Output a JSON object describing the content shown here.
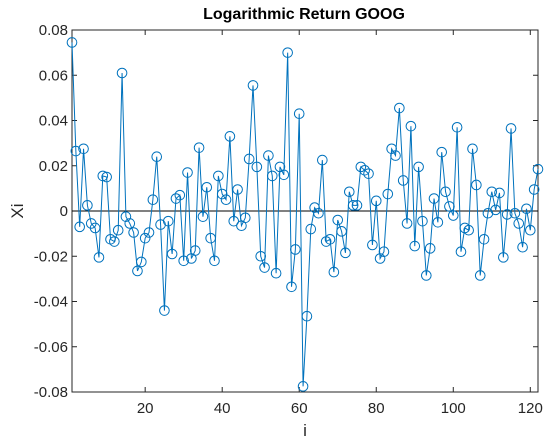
{
  "chart_data": {
    "type": "line",
    "title": "Logarithmic Return GOOG",
    "xlabel": "i",
    "ylabel": "Xi",
    "xlim": [
      1,
      122
    ],
    "ylim": [
      -0.08,
      0.08
    ],
    "xticks": [
      20,
      40,
      60,
      80,
      100,
      120
    ],
    "xtick_labels": [
      "20",
      "40",
      "60",
      "80",
      "100",
      "120"
    ],
    "yticks": [
      0.08,
      0.06,
      0.04,
      0.02,
      0,
      -0.02,
      -0.04,
      -0.06,
      -0.08
    ],
    "ytick_labels": [
      "0.08",
      "0.06",
      "0.04",
      "0.02",
      "0",
      "-0.02",
      "-0.04",
      "-0.06",
      "-0.08"
    ],
    "reference_line": 0,
    "marker": "circle",
    "series_color": "#0072BD",
    "grid": false,
    "series": [
      {
        "x": [
          1,
          2,
          3,
          4,
          5,
          6,
          7,
          8,
          9,
          10,
          11,
          12,
          13,
          14,
          15,
          16,
          17,
          18,
          19,
          20,
          21,
          22,
          23,
          24,
          25,
          26,
          27,
          28,
          29,
          30,
          31,
          32,
          33,
          34,
          35,
          36,
          37,
          38,
          39,
          40,
          41,
          42,
          43,
          44,
          45,
          46,
          47,
          48,
          49,
          50,
          51,
          52,
          53,
          54,
          55,
          56,
          57,
          58,
          59,
          60,
          61,
          62,
          63,
          64,
          65,
          66,
          67,
          68,
          69,
          70,
          71,
          72,
          73,
          74,
          75,
          76,
          77,
          78,
          79,
          80,
          81,
          82,
          83,
          84,
          85,
          86,
          87,
          88,
          89,
          90,
          91,
          92,
          93,
          94,
          95,
          96,
          97,
          98,
          99,
          100,
          101,
          102,
          103,
          104,
          105,
          106,
          107,
          108,
          109,
          110,
          111,
          112,
          113,
          114,
          115,
          116,
          117,
          118,
          119,
          120,
          121,
          122
        ],
        "values": [
          0.0745,
          0.0265,
          -0.007,
          0.0275,
          0.0025,
          -0.0055,
          -0.0075,
          -0.0205,
          0.0155,
          0.015,
          -0.0125,
          -0.0135,
          -0.0085,
          0.061,
          -0.0025,
          -0.0055,
          -0.0095,
          -0.0265,
          -0.0225,
          -0.012,
          -0.0095,
          0.005,
          0.024,
          -0.006,
          -0.044,
          -0.0045,
          -0.019,
          0.0055,
          0.007,
          -0.022,
          0.017,
          -0.021,
          -0.0175,
          0.028,
          -0.0025,
          0.0105,
          -0.012,
          -0.022,
          0.0155,
          0.0075,
          0.005,
          0.033,
          -0.0045,
          0.0095,
          -0.0065,
          -0.003,
          0.023,
          0.0555,
          0.0195,
          -0.02,
          -0.025,
          0.0245,
          0.0155,
          -0.0275,
          0.0195,
          0.016,
          0.07,
          -0.0335,
          -0.017,
          0.043,
          -0.0775,
          -0.0465,
          -0.008,
          0.0015,
          -0.001,
          0.0225,
          -0.0135,
          -0.0125,
          -0.027,
          -0.004,
          -0.009,
          -0.0185,
          0.0085,
          0.0025,
          0.0025,
          0.0195,
          0.018,
          0.0165,
          -0.015,
          0.0045,
          -0.021,
          -0.018,
          0.0075,
          0.0275,
          0.0245,
          0.0455,
          0.0135,
          -0.0055,
          0.0375,
          -0.0155,
          0.0195,
          -0.0045,
          -0.0285,
          -0.0165,
          0.0055,
          -0.005,
          0.026,
          0.0085,
          0.002,
          -0.002,
          0.037,
          -0.018,
          -0.0075,
          -0.0085,
          0.0275,
          0.0115,
          -0.0285,
          -0.0125,
          -0.001,
          0.0085,
          0.0005,
          0.008,
          -0.0205,
          -0.0015,
          0.0365,
          -0.001,
          -0.0055,
          -0.016,
          0.001,
          -0.0085,
          0.0095,
          0.0185
        ]
      }
    ]
  }
}
